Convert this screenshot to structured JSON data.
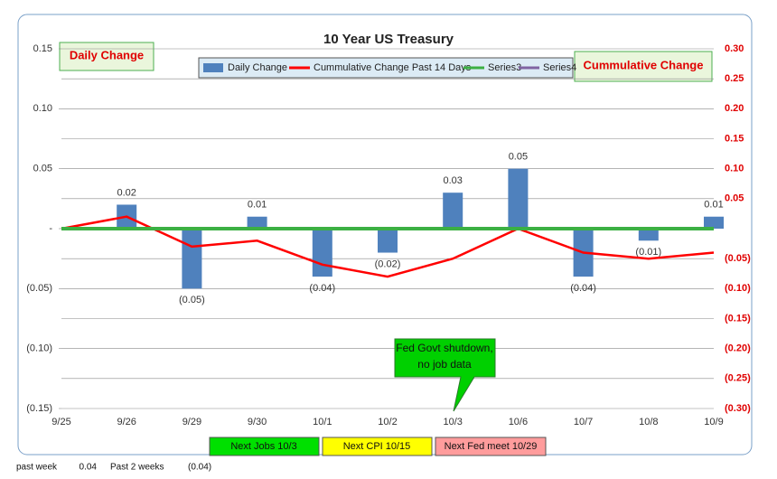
{
  "chart_data": {
    "type": "bar",
    "title": "10 Year US Treasury",
    "categories": [
      "9/25",
      "9/26",
      "9/29",
      "9/30",
      "10/1",
      "10/2",
      "10/3",
      "10/6",
      "10/7",
      "10/8",
      "10/9"
    ],
    "series": [
      {
        "name": "Daily Change",
        "type": "bar",
        "color": "#4f81bd",
        "values": [
          null,
          0.02,
          -0.05,
          0.01,
          -0.04,
          -0.02,
          0.03,
          0.05,
          -0.04,
          -0.01,
          0.01
        ],
        "value_labels": [
          null,
          "0.02",
          "(0.05)",
          "0.01",
          "(0.04)",
          "(0.02)",
          "0.03",
          "0.05",
          "(0.04)",
          "(0.01)",
          "0.01"
        ]
      },
      {
        "name": "Cummulative Change Past 14 Days",
        "type": "line",
        "axis": "y2",
        "color": "#ff0000",
        "values": [
          0,
          0.02,
          -0.03,
          -0.02,
          -0.06,
          -0.08,
          -0.05,
          0,
          -0.04,
          -0.05,
          -0.04
        ]
      },
      {
        "name": "Series3",
        "type": "line",
        "color": "#3cb043",
        "values": [
          0,
          0,
          0,
          0,
          0,
          0,
          0,
          0,
          0,
          0,
          0
        ]
      },
      {
        "name": "Series4",
        "type": "line",
        "color": "#8064a2",
        "values": [
          null,
          null,
          null,
          null,
          null,
          null,
          null,
          null,
          null,
          null,
          null
        ]
      }
    ],
    "ylim": [
      -0.15,
      0.15
    ],
    "yticks": [
      0.15,
      {
        "value": 0.1,
        "label": "0.10"
      },
      0.05,
      {
        "value": 0,
        "label": "-"
      },
      {
        "value": -0.05,
        "label": "(0.05)"
      },
      {
        "value": -0.1,
        "label": "(0.10)"
      },
      {
        "value": -0.15,
        "label": "(0.15)"
      }
    ],
    "y2lim": [
      -0.3,
      0.3
    ],
    "y2ticks": [
      {
        "value": 0.3,
        "label": "0.30"
      },
      0.25,
      {
        "value": 0.2,
        "label": "0.20"
      },
      0.15,
      {
        "value": 0.1,
        "label": "0.10"
      },
      0.05,
      {
        "value": -0.05,
        "label": "(0.05)"
      },
      {
        "value": -0.1,
        "label": "(0.10)"
      },
      {
        "value": -0.15,
        "label": "(0.15)"
      },
      {
        "value": -0.2,
        "label": "(0.20)"
      },
      {
        "value": -0.25,
        "label": "(0.25)"
      },
      {
        "value": -0.3,
        "label": "(0.30)"
      }
    ],
    "grid": true,
    "legend": "top",
    "left_axis_note": "Daily Change",
    "right_axis_note": "Cummulative Change",
    "callout": [
      "Fed Govt shutdown,",
      "no job data"
    ],
    "events": [
      "Next Jobs 10/3",
      "Next CPI 10/15",
      "Next Fed meet 10/29"
    ]
  },
  "footer": [
    "past week",
    "0.04",
    "Past 2 weeks",
    "(0.04)"
  ]
}
